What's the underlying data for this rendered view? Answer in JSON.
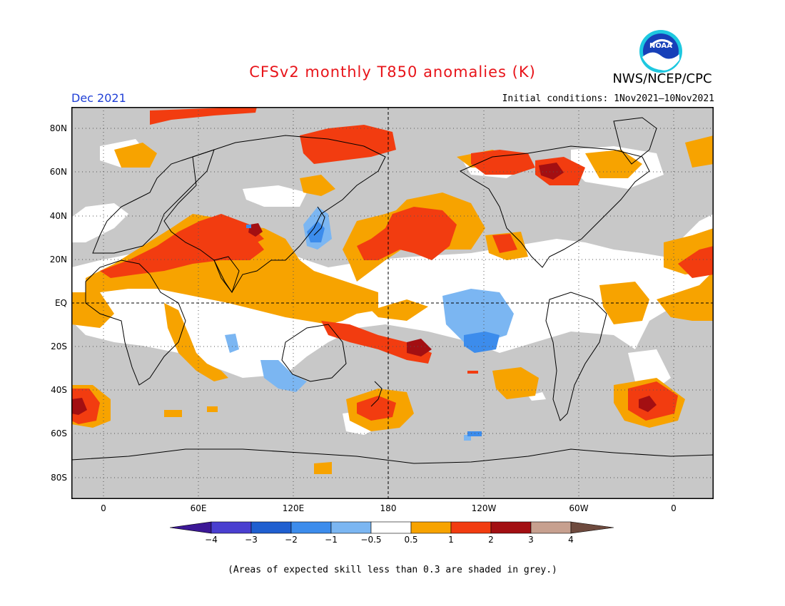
{
  "title": "CFSv2 monthly T850 anomalies (K)",
  "agency": "NWS/NCEP/CPC",
  "logo_text": "NOAA",
  "valid_month": "Dec 2021",
  "initial_conditions": "Initial conditions: 1Nov2021—10Nov2021",
  "latitude_labels": [
    "80N",
    "60N",
    "40N",
    "20N",
    "EQ",
    "20S",
    "40S",
    "60S",
    "80S"
  ],
  "longitude_labels": [
    "0",
    "60E",
    "120E",
    "180",
    "120W",
    "60W",
    "0"
  ],
  "colorbar": {
    "ticks": [
      "−4",
      "−3",
      "−2",
      "−1",
      "−0.5",
      "0.5",
      "1",
      "2",
      "3",
      "4"
    ],
    "colors": [
      "#3c1896",
      "#4a3fd0",
      "#1f5fd0",
      "#3c8cec",
      "#7bb6f2",
      "#ffffff",
      "#f7a300",
      "#f23c10",
      "#a30f12",
      "#c7a08f",
      "#6e4a3e"
    ]
  },
  "colors": {
    "grey_low_skill": "#c8c8c8",
    "coast": "#000000"
  },
  "footnote": "(Areas of expected skill less than 0.3 are shaded in grey.)"
}
